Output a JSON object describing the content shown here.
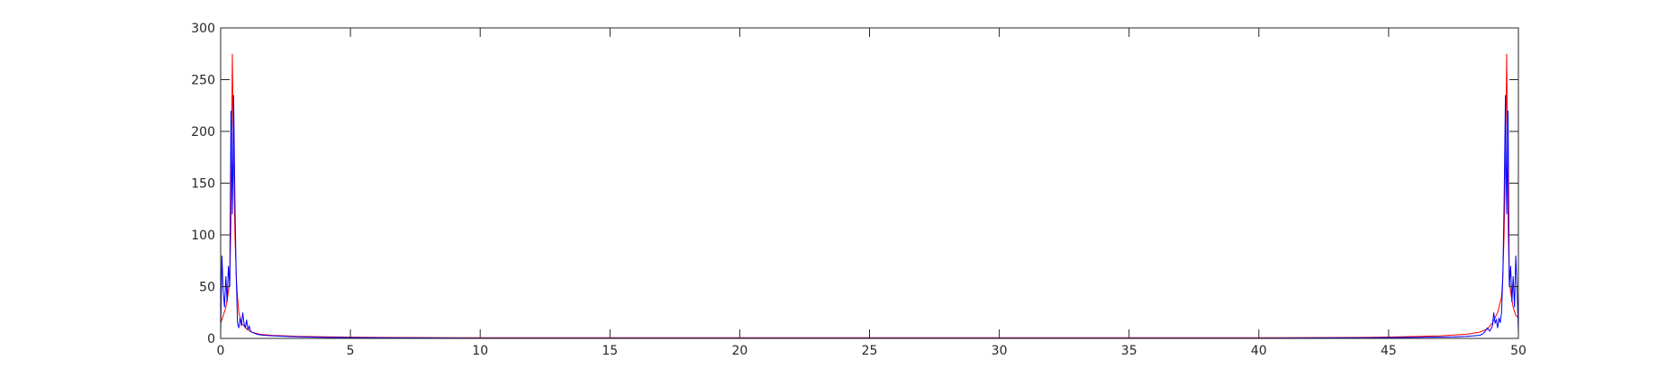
{
  "chart_data": {
    "type": "line",
    "title": "",
    "xlabel": "",
    "ylabel": "",
    "xlim": [
      0,
      50
    ],
    "ylim": [
      0,
      300
    ],
    "x_ticks": [
      "0",
      "5",
      "10",
      "15",
      "20",
      "25",
      "30",
      "35",
      "40",
      "45",
      "50"
    ],
    "y_ticks": [
      "0",
      "50",
      "100",
      "150",
      "200",
      "250",
      "300"
    ],
    "grid": false,
    "legend": "none",
    "series": [
      {
        "color": "#ff0000",
        "x": [
          0,
          0.1,
          0.2,
          0.3,
          0.35,
          0.4,
          0.45,
          0.5,
          0.55,
          0.6,
          0.65,
          0.7,
          0.8,
          1.0,
          1.2,
          1.5,
          2,
          3,
          4,
          5,
          6,
          8,
          9.8,
          40.2,
          42,
          44,
          45,
          46,
          47,
          48,
          48.5,
          48.8,
          49,
          49.2,
          49.35,
          49.4,
          49.45,
          49.5,
          49.55,
          49.6,
          49.65,
          49.7,
          49.8,
          49.9,
          50
        ],
        "values": [
          15,
          22,
          30,
          45,
          55,
          115,
          275,
          170,
          100,
          60,
          40,
          25,
          15,
          9,
          6,
          4,
          3,
          2,
          1.5,
          1.2,
          1.0,
          0.8,
          0.6,
          0.6,
          0.8,
          1.0,
          1.3,
          1.8,
          2.5,
          4,
          6,
          9,
          15,
          25,
          40,
          60,
          100,
          170,
          275,
          115,
          55,
          45,
          30,
          22,
          20
        ]
      },
      {
        "color": "#0000ff",
        "x": [
          0,
          0.05,
          0.1,
          0.15,
          0.2,
          0.25,
          0.3,
          0.35,
          0.4,
          0.45,
          0.5,
          0.55,
          0.6,
          0.65,
          0.7,
          0.75,
          0.8,
          0.85,
          0.9,
          0.95,
          1.0,
          1.05,
          1.1,
          1.15,
          1.2,
          1.3,
          1.4,
          1.5,
          1.7,
          2.0,
          2.5,
          3,
          4,
          5,
          7,
          10,
          40,
          43,
          45,
          46,
          47,
          47.5,
          48,
          48.5,
          48.6,
          48.7,
          48.8,
          48.9,
          49,
          49.05,
          49.1,
          49.15,
          49.2,
          49.25,
          49.3,
          49.35,
          49.4,
          49.45,
          49.5,
          49.55,
          49.6,
          49.65,
          49.7,
          49.75,
          49.8,
          49.85,
          49.9,
          49.95,
          50
        ],
        "values": [
          5,
          80,
          45,
          30,
          60,
          35,
          70,
          50,
          220,
          120,
          235,
          130,
          60,
          15,
          10,
          20,
          12,
          25,
          15,
          10,
          18,
          8,
          12,
          7,
          6,
          5,
          4,
          3.5,
          3,
          2.5,
          2,
          1.5,
          1,
          0.8,
          0.5,
          0.3,
          0.3,
          0.5,
          0.8,
          1.0,
          1.3,
          1.5,
          2,
          3,
          4,
          6,
          10,
          7,
          12,
          25,
          15,
          18,
          10,
          20,
          15,
          25,
          60,
          130,
          235,
          120,
          220,
          50,
          70,
          35,
          60,
          30,
          80,
          45,
          5
        ]
      }
    ]
  }
}
